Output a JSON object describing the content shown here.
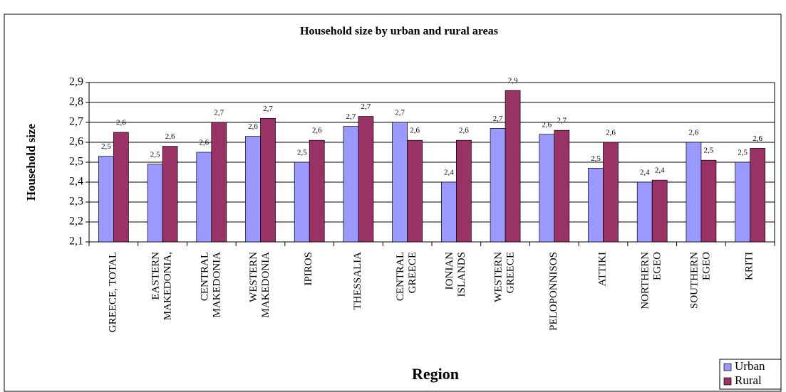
{
  "chart_data": {
    "type": "bar",
    "title": "Household size by urban and rural areas",
    "x_label": "Region",
    "y_label": "Household size",
    "categories": [
      "GREECE, TOTAL",
      "EASTERN\nMAKEDONIA,",
      "CENTRAL\nMAKEDONIA",
      "WESTERN\nMAKEDONIA",
      "IPIROS",
      "THESSALIA",
      "CENTRAL\nGREECE",
      "IONIAN\nISLANDS",
      "WESTERN\nGREECE",
      "PELOPONNISOS",
      "ATTIKI",
      "NORTHERN\nEGEO",
      "SOUTHERN\nEGEO",
      "KRITI"
    ],
    "series": [
      {
        "name": "Urban",
        "color": "#9999ff",
        "values": [
          2.53,
          2.49,
          2.55,
          2.63,
          2.5,
          2.68,
          2.7,
          2.4,
          2.67,
          2.64,
          2.47,
          2.4,
          2.6,
          2.5
        ],
        "value_labels": [
          "2,5",
          "2,5",
          "2,6",
          "2,6",
          "2,5",
          "2,7",
          "2,7",
          "2,4",
          "2,7",
          "2,6",
          "2,5",
          "2,4",
          "2,6",
          "2,5"
        ]
      },
      {
        "name": "Rural",
        "color": "#993366",
        "values": [
          2.65,
          2.58,
          2.7,
          2.72,
          2.61,
          2.73,
          2.61,
          2.61,
          2.86,
          2.66,
          2.6,
          2.41,
          2.51,
          2.57
        ],
        "value_labels": [
          "2,6",
          "2,6",
          "2,7",
          "2,7",
          "2,6",
          "2,7",
          "2,6",
          "2,6",
          "2,9",
          "2,7",
          "2,6",
          "2,4",
          "2,5",
          "2,6"
        ]
      }
    ],
    "ylim": [
      2.1,
      2.9
    ],
    "yticks": [
      {
        "value": 2.1,
        "label": "2,1"
      },
      {
        "value": 2.2,
        "label": "2,2"
      },
      {
        "value": 2.3,
        "label": "2,3"
      },
      {
        "value": 2.4,
        "label": "2,4"
      },
      {
        "value": 2.5,
        "label": "2,5"
      },
      {
        "value": 2.6,
        "label": "2,6"
      },
      {
        "value": 2.7,
        "label": "2,7"
      },
      {
        "value": 2.8,
        "label": "2,8"
      },
      {
        "value": 2.9,
        "label": "2,9"
      }
    ],
    "grid": true,
    "legend": "bottom-right"
  }
}
